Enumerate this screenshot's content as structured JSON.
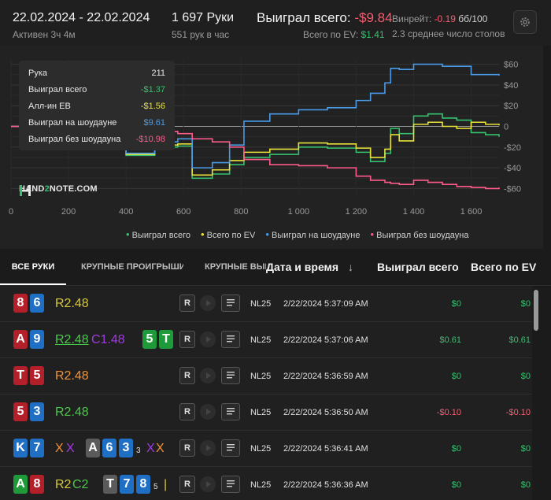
{
  "header": {
    "date_range": "22.02.2024 - 22.02.2024",
    "active": "Активен 3ч 4м",
    "hands": "1 697 Руки",
    "hands_per_hour": "551 рук в час",
    "won_label": "Выиграл всего:",
    "won_value": "-$9.84",
    "ev_label": "Всего по EV:",
    "ev_value": "$1.41",
    "winrate_label": "Винрейт:",
    "winrate_value": "-0.19",
    "winrate_unit": "бб/100",
    "avg_tables": "2.3 среднее число столов"
  },
  "tooltip": {
    "rows": [
      {
        "label": "Рука",
        "value": "211",
        "color": "#e8e8e8"
      },
      {
        "label": "Выиграл всего",
        "value": "-$1.37",
        "color": "#35c26f"
      },
      {
        "label": "Алл-ин EB",
        "value": "-$1.56",
        "color": "#e8e23a"
      },
      {
        "label": "Выиграл на шоудауне",
        "value": "$9.61",
        "color": "#4a9be8"
      },
      {
        "label": "Выиграл без шоудауна",
        "value": "-$10.98",
        "color": "#ff5a8a"
      }
    ]
  },
  "logo": {
    "pre": "HAND",
    "two": "2",
    "post": "NOTE.COM"
  },
  "chart_data": {
    "type": "line",
    "xlim": [
      0,
      1697
    ],
    "ylim": [
      -65,
      65
    ],
    "x_ticks": [
      "0",
      "200",
      "400",
      "600",
      "800",
      "1 000",
      "1 200",
      "1 400",
      "1 600"
    ],
    "x_tick_values": [
      0,
      200,
      400,
      600,
      800,
      1000,
      1200,
      1400,
      1600
    ],
    "y_ticks": [
      "$60",
      "$40",
      "$20",
      "0",
      "-$20",
      "-$40",
      "-$60"
    ],
    "y_tick_values": [
      60,
      40,
      20,
      0,
      -20,
      -40,
      -60
    ],
    "legend_position": "bottom",
    "series": [
      {
        "name": "Выиграл всего",
        "color": "#35c26f",
        "x": [
          0,
          100,
          200,
          300,
          400,
          500,
          580,
          630,
          700,
          760,
          810,
          900,
          1000,
          1100,
          1200,
          1250,
          1300,
          1320,
          1350,
          1400,
          1450,
          1500,
          1550,
          1600,
          1650,
          1697
        ],
        "y": [
          0,
          -4,
          -9,
          -18,
          -28,
          -20,
          -19,
          -50,
          -46,
          -37,
          -30,
          -27,
          -20,
          -21,
          -25,
          -34,
          -26,
          -2,
          -7,
          10,
          12,
          8,
          6,
          -6,
          -8,
          -10
        ]
      },
      {
        "name": "Всего по EV",
        "color": "#e8e23a",
        "x": [
          0,
          100,
          200,
          300,
          400,
          500,
          580,
          630,
          700,
          760,
          810,
          900,
          1000,
          1100,
          1200,
          1250,
          1300,
          1320,
          1350,
          1400,
          1450,
          1500,
          1550,
          1600,
          1650,
          1697
        ],
        "y": [
          0,
          -4,
          -9,
          -16,
          -27,
          -18,
          -17,
          -47,
          -42,
          -33,
          -25,
          -22,
          -16,
          -17,
          -21,
          -30,
          -22,
          -8,
          -14,
          2,
          4,
          0,
          -2,
          4,
          2,
          1
        ]
      },
      {
        "name": "Выиграл на шоудауне",
        "color": "#4a9be8",
        "x": [
          0,
          100,
          200,
          300,
          400,
          500,
          580,
          630,
          700,
          760,
          810,
          900,
          1000,
          1100,
          1200,
          1250,
          1300,
          1320,
          1350,
          1400,
          1450,
          1500,
          1550,
          1600,
          1650,
          1697
        ],
        "y": [
          0,
          -2,
          -6,
          -14,
          -26,
          -15,
          -12,
          -40,
          -35,
          -18,
          5,
          12,
          16,
          18,
          25,
          32,
          42,
          56,
          55,
          60,
          60,
          58,
          58,
          50,
          50,
          49
        ]
      },
      {
        "name": "Выиграл без шоудауна",
        "color": "#ff5a8a",
        "x": [
          0,
          100,
          200,
          300,
          400,
          500,
          580,
          630,
          700,
          760,
          810,
          900,
          1000,
          1100,
          1200,
          1250,
          1300,
          1320,
          1350,
          1400,
          1450,
          1500,
          1550,
          1600,
          1650,
          1697
        ],
        "y": [
          0,
          -2,
          -4,
          -4,
          -3,
          -5,
          -7,
          -12,
          -15,
          -20,
          -32,
          -37,
          -38,
          -40,
          -48,
          -52,
          -54,
          -55,
          -56,
          -52,
          -54,
          -56,
          -58,
          -59,
          -60,
          -59
        ]
      }
    ]
  },
  "tabs": {
    "all": "ВСЕ РУКИ",
    "big_losses": "КРУПНЫЕ ПРОИГРЫШИ",
    "big_wins": "КРУПНЫЕ ВЫИГРЫШИ"
  },
  "columns": {
    "datetime": "Дата и время",
    "sort_arrow": "↓",
    "won": "Выиграл всего",
    "ev": "Всего по EV"
  },
  "row_buttons": {
    "replay": "R"
  },
  "rows": [
    {
      "cards": [
        {
          "r": "8",
          "c": "red"
        },
        {
          "r": "6",
          "c": "blue"
        }
      ],
      "actions": [
        {
          "t": "R2.48",
          "c": "yellow"
        }
      ],
      "limit": "NL25",
      "datetime": "2/22/2024 5:37:09 AM",
      "won": "$0",
      "ev": "$0",
      "won_class": "pos",
      "ev_class": "pos"
    },
    {
      "cards": [
        {
          "r": "A",
          "c": "red"
        },
        {
          "r": "9",
          "c": "blue"
        }
      ],
      "actions": [
        {
          "t": "R2.48",
          "c": "lgreen",
          "u": true
        },
        {
          "t": "C1.48",
          "c": "purple"
        }
      ],
      "board": [
        {
          "r": "5",
          "c": "green"
        },
        {
          "r": "T",
          "c": "green"
        }
      ],
      "limit": "NL25",
      "datetime": "2/22/2024 5:37:06 AM",
      "won": "$0.61",
      "ev": "$0.61",
      "won_class": "pos",
      "ev_class": "pos"
    },
    {
      "cards": [
        {
          "r": "T",
          "c": "red"
        },
        {
          "r": "5",
          "c": "red"
        }
      ],
      "actions": [
        {
          "t": "R2.48",
          "c": "orange"
        }
      ],
      "limit": "NL25",
      "datetime": "2/22/2024 5:36:59 AM",
      "won": "$0",
      "ev": "$0",
      "won_class": "pos",
      "ev_class": "pos"
    },
    {
      "cards": [
        {
          "r": "5",
          "c": "red"
        },
        {
          "r": "3",
          "c": "blue"
        }
      ],
      "actions": [
        {
          "t": "R2.48",
          "c": "lgreen"
        }
      ],
      "limit": "NL25",
      "datetime": "2/22/2024 5:36:50 AM",
      "won": "-$0.10",
      "ev": "-$0.10",
      "won_class": "neg",
      "ev_class": "neg"
    },
    {
      "cards": [
        {
          "r": "K",
          "c": "blue"
        },
        {
          "r": "7",
          "c": "blue"
        }
      ],
      "actions": [
        {
          "t": "X",
          "c": "orange"
        },
        {
          "t": "X",
          "c": "purple"
        }
      ],
      "board": [
        {
          "r": "A",
          "c": "gray"
        },
        {
          "r": "6",
          "c": "blue"
        },
        {
          "r": "3",
          "c": "blue"
        }
      ],
      "small": "3",
      "actions2": [
        {
          "t": "X",
          "c": "purple"
        },
        {
          "t": "X",
          "c": "orange"
        }
      ],
      "limit": "NL25",
      "datetime": "2/22/2024 5:36:41 AM",
      "won": "$0",
      "ev": "$0",
      "won_class": "pos",
      "ev_class": "pos"
    },
    {
      "cards": [
        {
          "r": "A",
          "c": "green"
        },
        {
          "r": "8",
          "c": "red"
        }
      ],
      "actions": [
        {
          "t": "R2",
          "c": "yellow"
        },
        {
          "t": "C2",
          "c": "lgreen"
        }
      ],
      "board": [
        {
          "r": "T",
          "c": "gray"
        },
        {
          "r": "7",
          "c": "blue"
        },
        {
          "r": "8",
          "c": "blue"
        }
      ],
      "small": "5",
      "actions2": [
        {
          "t": "|",
          "c": "yellow"
        }
      ],
      "limit": "NL25",
      "datetime": "2/22/2024 5:36:36 AM",
      "won": "$0",
      "ev": "$0",
      "won_class": "pos",
      "ev_class": "pos"
    }
  ]
}
